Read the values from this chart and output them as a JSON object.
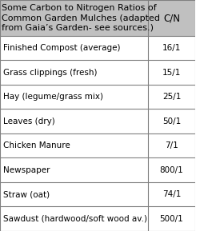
{
  "header_left_lines": "Some Carbon to Nitrogen Ratios of\nCommon Garden Mulches (adapted\nfrom Gaia’s Garden- see sources.)",
  "header_right": "C/N",
  "rows": [
    [
      "Finished Compost (average)",
      "16/1"
    ],
    [
      "Grass clippings (fresh)",
      "15/1"
    ],
    [
      "Hay (legume/grass mix)",
      "25/1"
    ],
    [
      "Leaves (dry)",
      "50/1"
    ],
    [
      "Chicken Manure",
      "7/1"
    ],
    [
      "Newspaper",
      "800/1"
    ],
    [
      "Straw (oat)",
      "74/1"
    ],
    [
      "Sawdust (hardwood/soft wood av.)",
      "500/1"
    ]
  ],
  "header_bg": "#c0c0c0",
  "row_bg": "#ffffff",
  "border_color": "#808080",
  "text_color": "#000000",
  "font_size": 7.5,
  "header_font_size": 8.0,
  "col_split": 0.76,
  "figsize": [
    2.5,
    2.89
  ],
  "dpi": 100
}
